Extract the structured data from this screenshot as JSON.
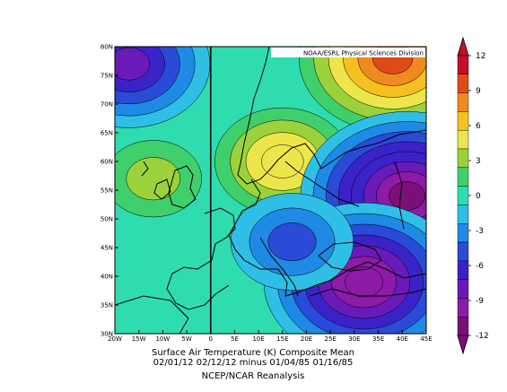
{
  "source_label": "NOAA/ESRL Physical Sciences Division",
  "caption": {
    "line1": "Surface Air Temperature (K) Composite Mean",
    "line2": "02/01/12 02/12/12 minus 01/04/85 01/16/85",
    "line3": "NCEP/NCAR Reanalysis"
  },
  "axes": {
    "lon_labels": [
      "20W",
      "15W",
      "10W",
      "5W",
      "0",
      "5E",
      "10E",
      "15E",
      "20E",
      "25E",
      "30E",
      "35E",
      "40E",
      "45E"
    ],
    "lat_labels": [
      "80N",
      "75N",
      "70N",
      "65N",
      "60N",
      "55N",
      "50N",
      "45N",
      "40N",
      "35N",
      "30N"
    ]
  },
  "colorbar": {
    "labels": [
      "12",
      "9",
      "6",
      "3",
      "0",
      "-3",
      "-6",
      "-9",
      "-12"
    ],
    "colors": [
      "#c0102a",
      "#e04a18",
      "#f08a1e",
      "#f5c020",
      "#ece64a",
      "#9bd23c",
      "#3fcf6b",
      "#2fdcb0",
      "#2fbfe6",
      "#1f8ae6",
      "#2a4ad8",
      "#3a22c8",
      "#6a1ab8",
      "#8e1aa8",
      "#7a0f78"
    ]
  },
  "map_data": {
    "type": "contour-map",
    "lon_range": [
      -20,
      45
    ],
    "lat_range": [
      30,
      80
    ],
    "value_range": [
      -12,
      12
    ],
    "units": "K",
    "features": [
      {
        "name": "arctic-cold-anomaly",
        "lon": -17,
        "lat": 77,
        "value": -8
      },
      {
        "name": "north-atlantic-warm-anomaly",
        "lon": -12,
        "lat": 57,
        "value": 3
      },
      {
        "name": "scandinavia-warm-anomaly",
        "lon": 15,
        "lat": 60,
        "value": 6
      },
      {
        "name": "barents-warm-anomaly",
        "lon": 38,
        "lat": 78,
        "value": 10
      },
      {
        "name": "russia-cold-anomaly",
        "lon": 41,
        "lat": 54,
        "value": -12
      },
      {
        "name": "black-sea-cold-anomaly",
        "lon": 32,
        "lat": 39,
        "value": -11
      },
      {
        "name": "central-europe-cold-anomaly",
        "lon": 17,
        "lat": 46,
        "value": -5
      }
    ]
  }
}
